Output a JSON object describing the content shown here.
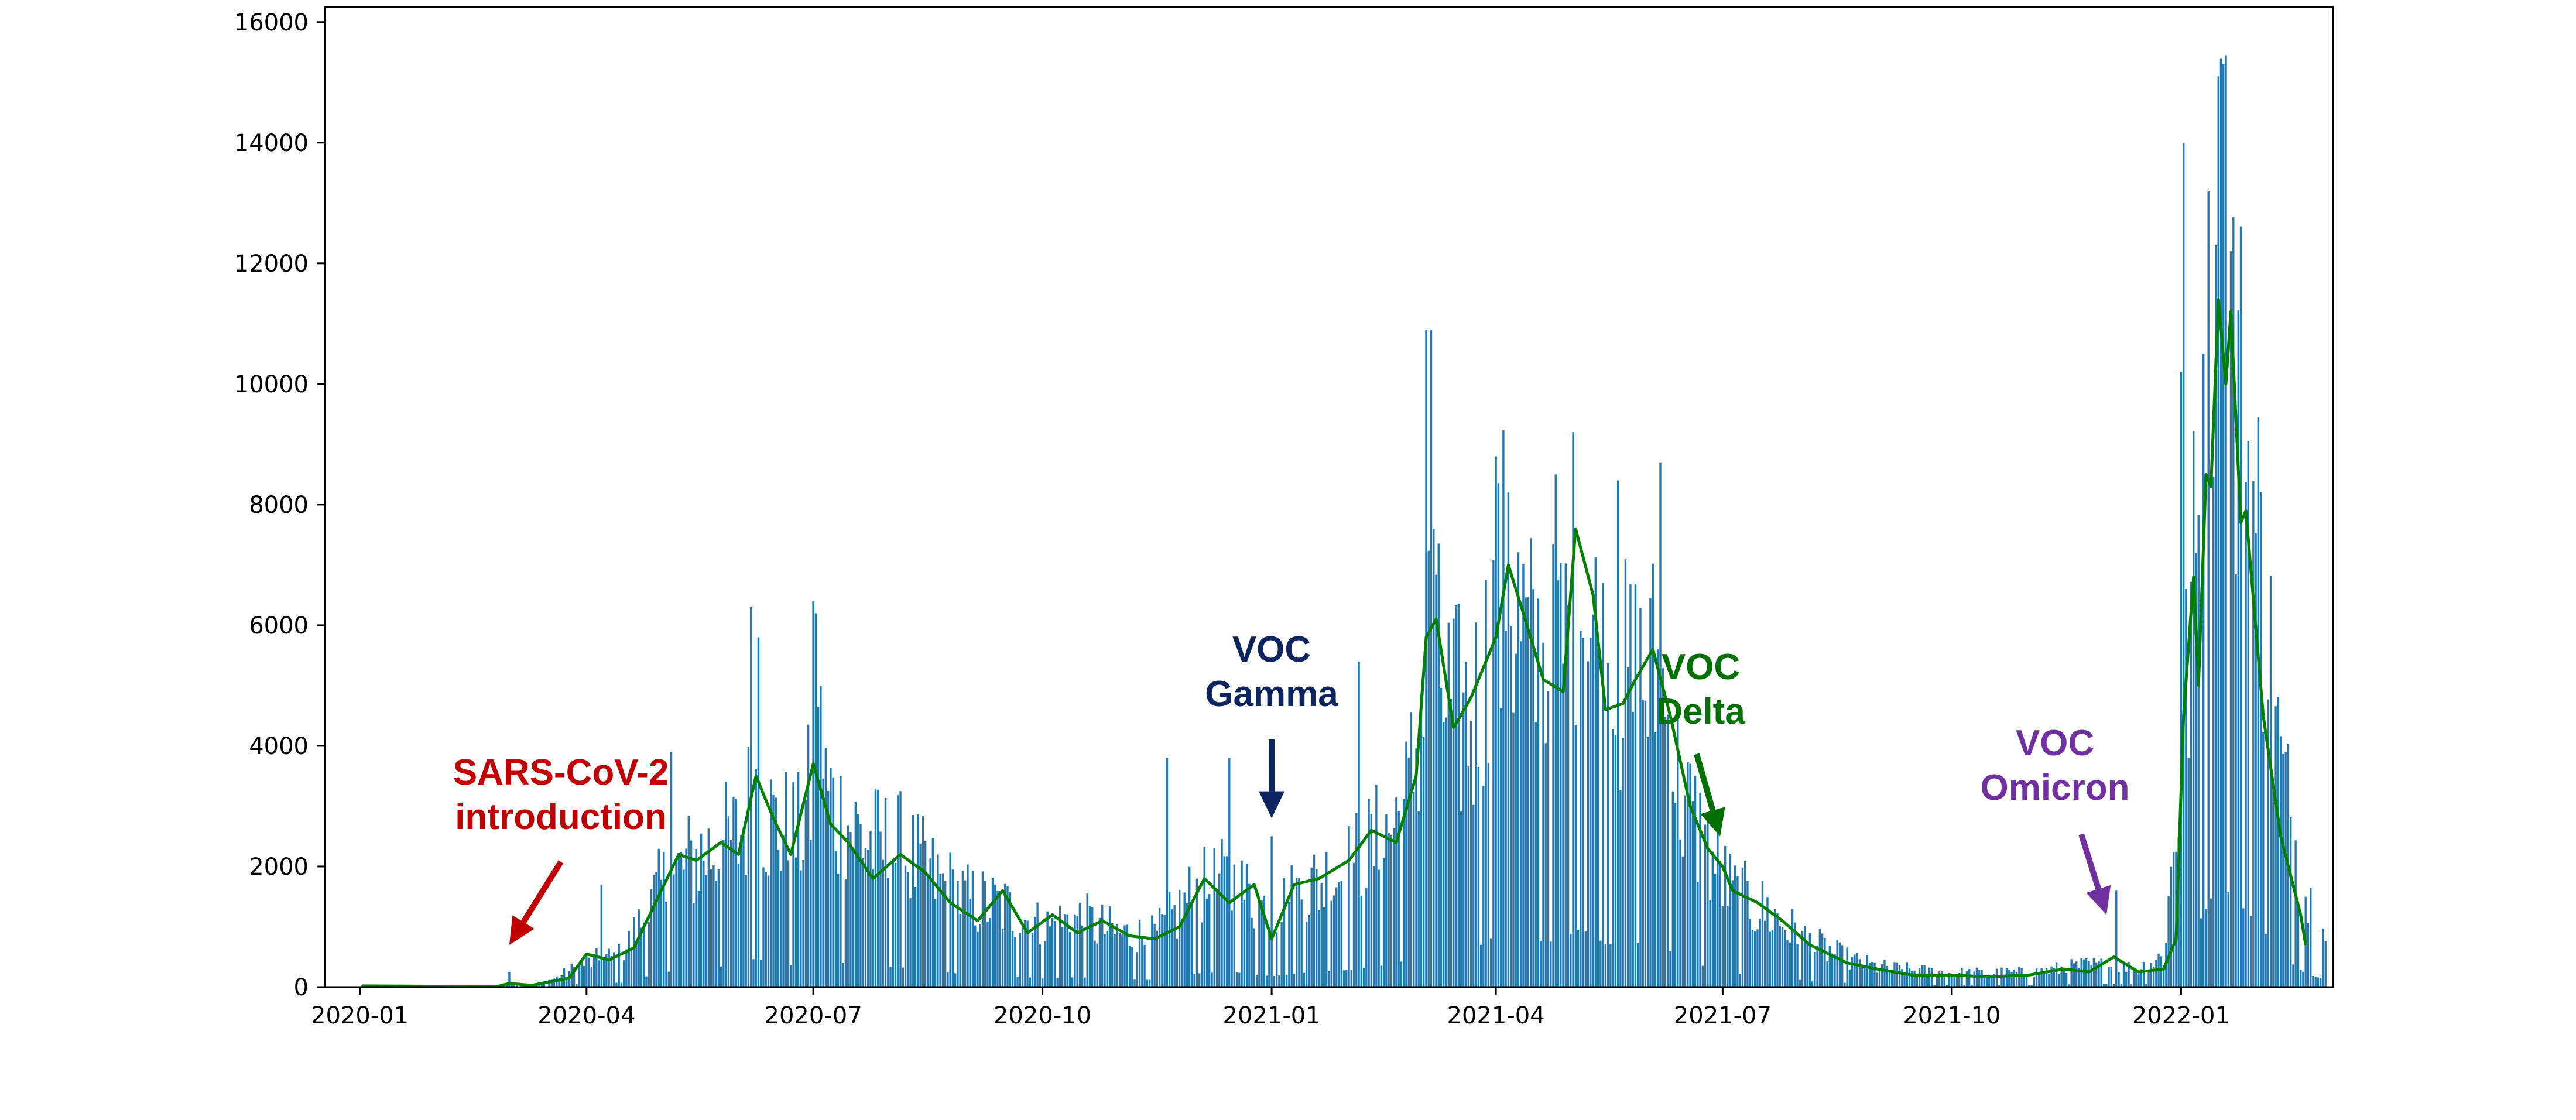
{
  "chart_data": {
    "type": "bar",
    "title": "",
    "xlabel": "",
    "ylabel": "",
    "x_range": [
      "2019-12-18",
      "2022-03-03"
    ],
    "ylim": [
      0,
      16250
    ],
    "grid": false,
    "legend": "none",
    "y_ticks": [
      0,
      2000,
      4000,
      6000,
      8000,
      10000,
      12000,
      14000,
      16000
    ],
    "x_ticks": [
      "2020-01-01",
      "2020-04-01",
      "2020-07-01",
      "2020-10-01",
      "2021-01-01",
      "2021-04-01",
      "2021-07-01",
      "2021-10-01",
      "2022-01-01"
    ],
    "x_tick_labels": [
      "2020-01",
      "2020-04",
      "2020-07",
      "2020-10",
      "2021-01",
      "2021-04",
      "2021-07",
      "2021-10",
      "2022-01"
    ],
    "series": [
      {
        "kind": "bar",
        "color": "#1f77b4",
        "x_start": "2020-01-02",
        "x_end": "2022-02-28",
        "anchors": [
          [
            "2020-01-02",
            30
          ],
          [
            "2020-02-25",
            20
          ],
          [
            "2020-03-01",
            60
          ],
          [
            "2020-03-10",
            20
          ],
          [
            "2020-03-20",
            150
          ],
          [
            "2020-04-01",
            400
          ],
          [
            "2020-04-15",
            500
          ],
          [
            "2020-05-01",
            1600
          ],
          [
            "2020-05-15",
            2100
          ],
          [
            "2020-06-01",
            2400
          ],
          [
            "2020-06-08",
            3200
          ],
          [
            "2020-06-15",
            2600
          ],
          [
            "2020-06-25",
            2400
          ],
          [
            "2020-07-03",
            3500
          ],
          [
            "2020-07-10",
            2800
          ],
          [
            "2020-07-25",
            2300
          ],
          [
            "2020-08-05",
            2200
          ],
          [
            "2020-08-20",
            1700
          ],
          [
            "2020-09-01",
            1400
          ],
          [
            "2020-09-15",
            1300
          ],
          [
            "2020-10-01",
            950
          ],
          [
            "2020-10-15",
            1100
          ],
          [
            "2020-11-01",
            850
          ],
          [
            "2020-11-15",
            800
          ],
          [
            "2020-12-01",
            1500
          ],
          [
            "2020-12-15",
            1700
          ],
          [
            "2021-01-01",
            1200
          ],
          [
            "2021-01-15",
            1600
          ],
          [
            "2021-02-01",
            1900
          ],
          [
            "2021-02-15",
            2400
          ],
          [
            "2021-02-25",
            3000
          ],
          [
            "2021-03-05",
            5500
          ],
          [
            "2021-03-15",
            4300
          ],
          [
            "2021-03-25",
            4500
          ],
          [
            "2021-04-05",
            6500
          ],
          [
            "2021-04-15",
            5200
          ],
          [
            "2021-04-25",
            5000
          ],
          [
            "2021-05-05",
            6500
          ],
          [
            "2021-05-15",
            4800
          ],
          [
            "2021-05-25",
            4800
          ],
          [
            "2021-06-05",
            5000
          ],
          [
            "2021-06-15",
            3000
          ],
          [
            "2021-06-25",
            2200
          ],
          [
            "2021-07-05",
            1500
          ],
          [
            "2021-07-20",
            1200
          ],
          [
            "2021-08-01",
            800
          ],
          [
            "2021-08-20",
            450
          ],
          [
            "2021-09-01",
            320
          ],
          [
            "2021-10-01",
            220
          ],
          [
            "2021-11-01",
            230
          ],
          [
            "2021-11-25",
            350
          ],
          [
            "2021-12-15",
            300
          ],
          [
            "2021-12-25",
            500
          ],
          [
            "2022-01-01",
            3500
          ],
          [
            "2022-01-05",
            6000
          ],
          [
            "2022-01-10",
            8000
          ],
          [
            "2022-01-15",
            11000
          ],
          [
            "2022-01-20",
            10500
          ],
          [
            "2022-01-25",
            9000
          ],
          [
            "2022-02-01",
            7000
          ],
          [
            "2022-02-10",
            3500
          ],
          [
            "2022-02-20",
            1500
          ],
          [
            "2022-02-28",
            800
          ]
        ],
        "spikes": [
          [
            "2020-03-01",
            250
          ],
          [
            "2020-04-07",
            1700
          ],
          [
            "2020-05-05",
            3900
          ],
          [
            "2020-06-06",
            6300
          ],
          [
            "2020-06-09",
            5800
          ],
          [
            "2020-07-01",
            6400
          ],
          [
            "2020-07-02",
            6200
          ],
          [
            "2020-07-04",
            5000
          ],
          [
            "2020-11-20",
            3800
          ],
          [
            "2020-12-15",
            3800
          ],
          [
            "2021-01-01",
            2500
          ],
          [
            "2021-02-05",
            5400
          ],
          [
            "2021-03-04",
            10900
          ],
          [
            "2021-03-06",
            10900
          ],
          [
            "2021-03-07",
            7600
          ],
          [
            "2021-04-01",
            8800
          ],
          [
            "2021-04-06",
            8200
          ],
          [
            "2021-04-25",
            8500
          ],
          [
            "2021-05-02",
            9200
          ],
          [
            "2021-05-20",
            8400
          ],
          [
            "2021-06-06",
            8700
          ],
          [
            "2021-12-06",
            1600
          ],
          [
            "2022-01-01",
            10200
          ],
          [
            "2022-01-02",
            14000
          ],
          [
            "2022-01-10",
            10500
          ],
          [
            "2022-01-12",
            13200
          ],
          [
            "2022-01-15",
            12300
          ],
          [
            "2022-01-17",
            15400
          ],
          [
            "2022-01-18",
            15300
          ],
          [
            "2022-01-19",
            15450
          ],
          [
            "2022-01-21",
            12200
          ]
        ]
      },
      {
        "kind": "line",
        "color": "#008000",
        "points": [
          [
            "2020-01-02",
            20
          ],
          [
            "2020-02-25",
            10
          ],
          [
            "2020-03-01",
            60
          ],
          [
            "2020-03-10",
            30
          ],
          [
            "2020-03-25",
            150
          ],
          [
            "2020-04-01",
            550
          ],
          [
            "2020-04-10",
            450
          ],
          [
            "2020-04-20",
            650
          ],
          [
            "2020-05-01",
            1600
          ],
          [
            "2020-05-08",
            2200
          ],
          [
            "2020-05-15",
            2100
          ],
          [
            "2020-05-25",
            2400
          ],
          [
            "2020-06-01",
            2200
          ],
          [
            "2020-06-08",
            3500
          ],
          [
            "2020-06-15",
            2800
          ],
          [
            "2020-06-22",
            2200
          ],
          [
            "2020-07-01",
            3700
          ],
          [
            "2020-07-08",
            2700
          ],
          [
            "2020-07-15",
            2400
          ],
          [
            "2020-07-25",
            1800
          ],
          [
            "2020-08-05",
            2200
          ],
          [
            "2020-08-15",
            1900
          ],
          [
            "2020-08-25",
            1400
          ],
          [
            "2020-09-05",
            1100
          ],
          [
            "2020-09-15",
            1600
          ],
          [
            "2020-09-25",
            900
          ],
          [
            "2020-10-05",
            1200
          ],
          [
            "2020-10-15",
            900
          ],
          [
            "2020-10-25",
            1100
          ],
          [
            "2020-11-05",
            850
          ],
          [
            "2020-11-15",
            800
          ],
          [
            "2020-11-25",
            1000
          ],
          [
            "2020-12-05",
            1800
          ],
          [
            "2020-12-15",
            1400
          ],
          [
            "2020-12-25",
            1700
          ],
          [
            "2021-01-01",
            800
          ],
          [
            "2021-01-10",
            1700
          ],
          [
            "2021-01-20",
            1800
          ],
          [
            "2021-02-01",
            2100
          ],
          [
            "2021-02-10",
            2600
          ],
          [
            "2021-02-20",
            2400
          ],
          [
            "2021-02-28",
            3500
          ],
          [
            "2021-03-04",
            5800
          ],
          [
            "2021-03-08",
            6100
          ],
          [
            "2021-03-15",
            4300
          ],
          [
            "2021-03-22",
            4800
          ],
          [
            "2021-04-01",
            5800
          ],
          [
            "2021-04-06",
            7000
          ],
          [
            "2021-04-12",
            6200
          ],
          [
            "2021-04-20",
            5100
          ],
          [
            "2021-04-28",
            4900
          ],
          [
            "2021-05-03",
            7600
          ],
          [
            "2021-05-10",
            6500
          ],
          [
            "2021-05-15",
            4600
          ],
          [
            "2021-05-22",
            4700
          ],
          [
            "2021-05-27",
            5100
          ],
          [
            "2021-06-03",
            5600
          ],
          [
            "2021-06-10",
            4500
          ],
          [
            "2021-06-18",
            3000
          ],
          [
            "2021-06-25",
            2300
          ],
          [
            "2021-07-01",
            2000
          ],
          [
            "2021-07-05",
            1600
          ],
          [
            "2021-07-15",
            1400
          ],
          [
            "2021-07-25",
            1100
          ],
          [
            "2021-08-05",
            700
          ],
          [
            "2021-08-20",
            400
          ],
          [
            "2021-09-01",
            300
          ],
          [
            "2021-09-15",
            200
          ],
          [
            "2021-10-01",
            200
          ],
          [
            "2021-10-15",
            170
          ],
          [
            "2021-11-01",
            200
          ],
          [
            "2021-11-15",
            300
          ],
          [
            "2021-11-25",
            250
          ],
          [
            "2021-12-05",
            500
          ],
          [
            "2021-12-15",
            250
          ],
          [
            "2021-12-25",
            300
          ],
          [
            "2021-12-30",
            800
          ],
          [
            "2022-01-02",
            4500
          ],
          [
            "2022-01-06",
            6800
          ],
          [
            "2022-01-08",
            5000
          ],
          [
            "2022-01-11",
            8500
          ],
          [
            "2022-01-13",
            8300
          ],
          [
            "2022-01-16",
            11400
          ],
          [
            "2022-01-19",
            10000
          ],
          [
            "2022-01-21",
            11200
          ],
          [
            "2022-01-25",
            7700
          ],
          [
            "2022-01-27",
            7900
          ],
          [
            "2022-02-03",
            4500
          ],
          [
            "2022-02-10",
            2500
          ],
          [
            "2022-02-18",
            1200
          ],
          [
            "2022-02-20",
            700
          ]
        ]
      }
    ],
    "annotations": [
      {
        "id": "sars",
        "lines": [
          "SARS-CoV-2",
          "introduction"
        ],
        "color": "#c00000",
        "arrow_date": "2020-03-01",
        "arrow_to_value": 700
      },
      {
        "id": "gamma",
        "lines": [
          "VOC",
          "Gamma"
        ],
        "color": "#0d2460",
        "arrow_date": "2021-01-01",
        "arrow_to_value": 2800
      },
      {
        "id": "delta",
        "lines": [
          "VOC",
          "Delta"
        ],
        "color": "#007000",
        "arrow_date": "2021-06-30",
        "arrow_to_value": 2500
      },
      {
        "id": "omicron",
        "lines": [
          "VOC",
          "Omicron"
        ],
        "color": "#7030a0",
        "arrow_date": "2021-12-25",
        "arrow_to_value": 1200
      }
    ]
  }
}
